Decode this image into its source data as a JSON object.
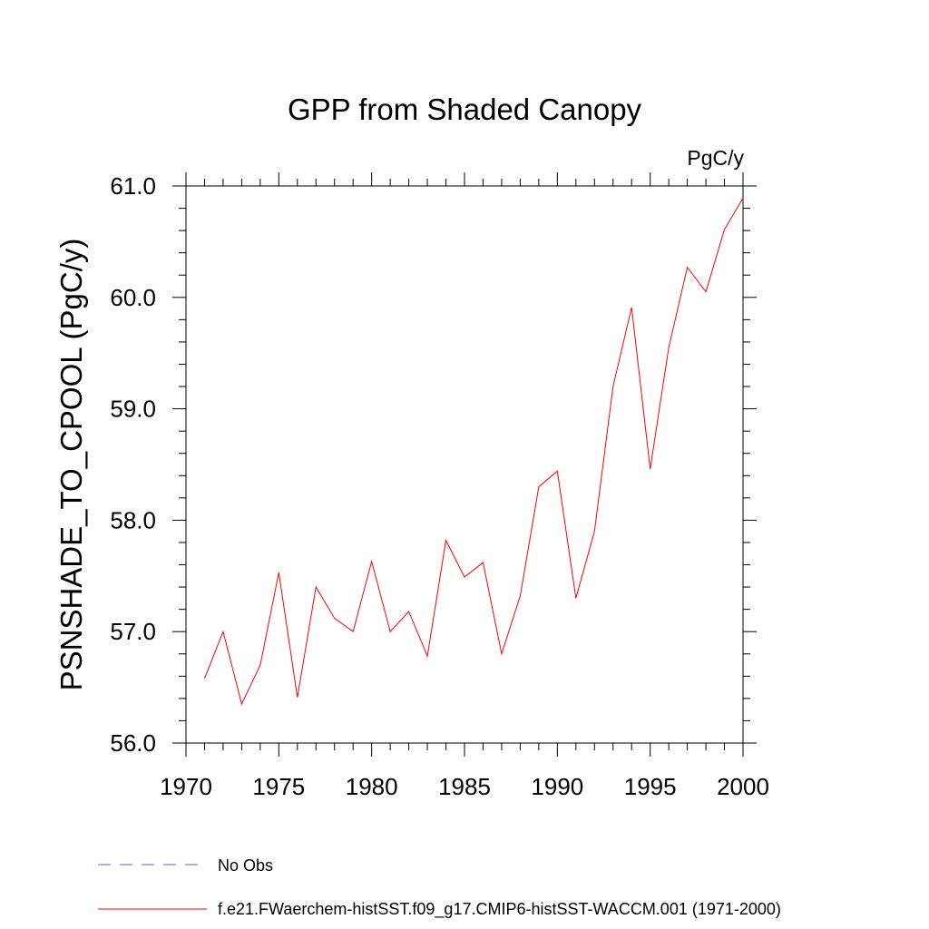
{
  "chart_data": {
    "type": "line",
    "title": "GPP from Shaded Canopy",
    "units": "PgC/y",
    "ylabel": "PSNSHADE_TO_CPOOL  (PgC/y)",
    "xlabel": "",
    "xlim": [
      1970,
      2000
    ],
    "ylim": [
      56.0,
      61.0
    ],
    "x_ticks": [
      "1970",
      "1975",
      "1980",
      "1985",
      "1990",
      "1995",
      "2000"
    ],
    "y_ticks": [
      "56.0",
      "57.0",
      "58.0",
      "59.0",
      "60.0",
      "61.0"
    ],
    "grid": false,
    "legend_position": "bottom-left",
    "series": [
      {
        "name": "No Obs",
        "color": "#6a5acd",
        "style": "dashed",
        "values": []
      },
      {
        "name": "f.e21.FWaerchem-histSST.f09_g17.CMIP6-histSST-WACCM.001 (1971-2000)",
        "color": "#ff0000",
        "style": "solid",
        "x": [
          1971,
          1972,
          1973,
          1974,
          1975,
          1976,
          1977,
          1978,
          1979,
          1980,
          1981,
          1982,
          1983,
          1984,
          1985,
          1986,
          1987,
          1988,
          1989,
          1990,
          1991,
          1992,
          1993,
          1994,
          1995,
          1996,
          1997,
          1998,
          1999,
          2000
        ],
        "values": [
          56.58,
          57.0,
          56.35,
          56.7,
          57.53,
          56.41,
          57.4,
          57.12,
          57.0,
          57.63,
          57.0,
          57.18,
          56.78,
          57.82,
          57.49,
          57.62,
          56.8,
          57.32,
          58.3,
          58.44,
          57.3,
          57.9,
          59.2,
          59.91,
          58.46,
          59.55,
          60.27,
          60.05,
          60.61,
          60.89
        ]
      }
    ]
  }
}
